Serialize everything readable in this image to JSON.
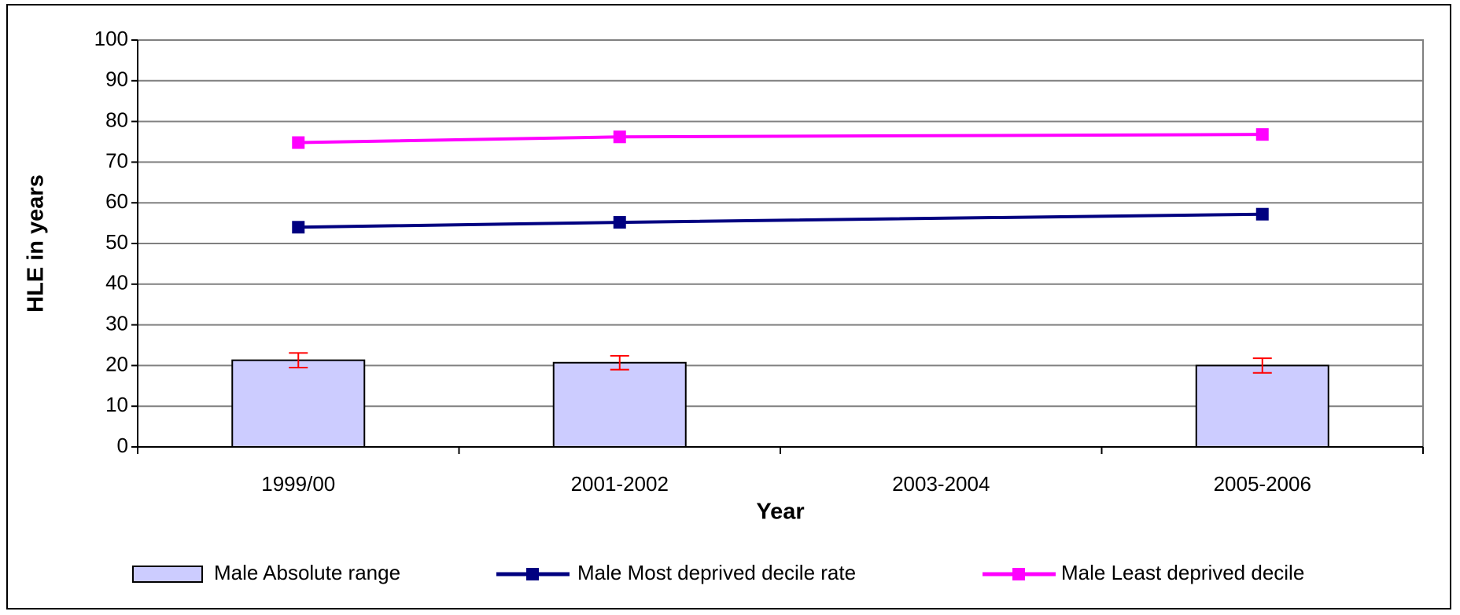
{
  "chart_data": {
    "type": "bar+line",
    "y_label": "HLE in years",
    "x_label": "Year",
    "categories": [
      "1999/00",
      "2001-2002",
      "2003-2004",
      "2005-2006"
    ],
    "series": [
      {
        "name": "Male Absolute range",
        "type": "bar",
        "color": "#ccccff",
        "values": [
          21.3,
          20.7,
          null,
          20.0
        ],
        "errors": [
          1.8,
          1.7,
          null,
          1.8
        ],
        "error_color": "#ff0000"
      },
      {
        "name": "Male Most deprived decile rate",
        "type": "line",
        "color": "#000080",
        "values": [
          54.0,
          55.2,
          null,
          57.2
        ]
      },
      {
        "name": "Male Least deprived decile",
        "type": "line",
        "color": "#ff00ff",
        "values": [
          74.8,
          76.2,
          null,
          76.8
        ]
      }
    ],
    "connect_gaps": true,
    "ylim": [
      0,
      100
    ],
    "yticks": [
      0,
      10,
      20,
      30,
      40,
      50,
      60,
      70,
      80,
      90,
      100
    ],
    "grid": true,
    "legend": "bottom"
  }
}
